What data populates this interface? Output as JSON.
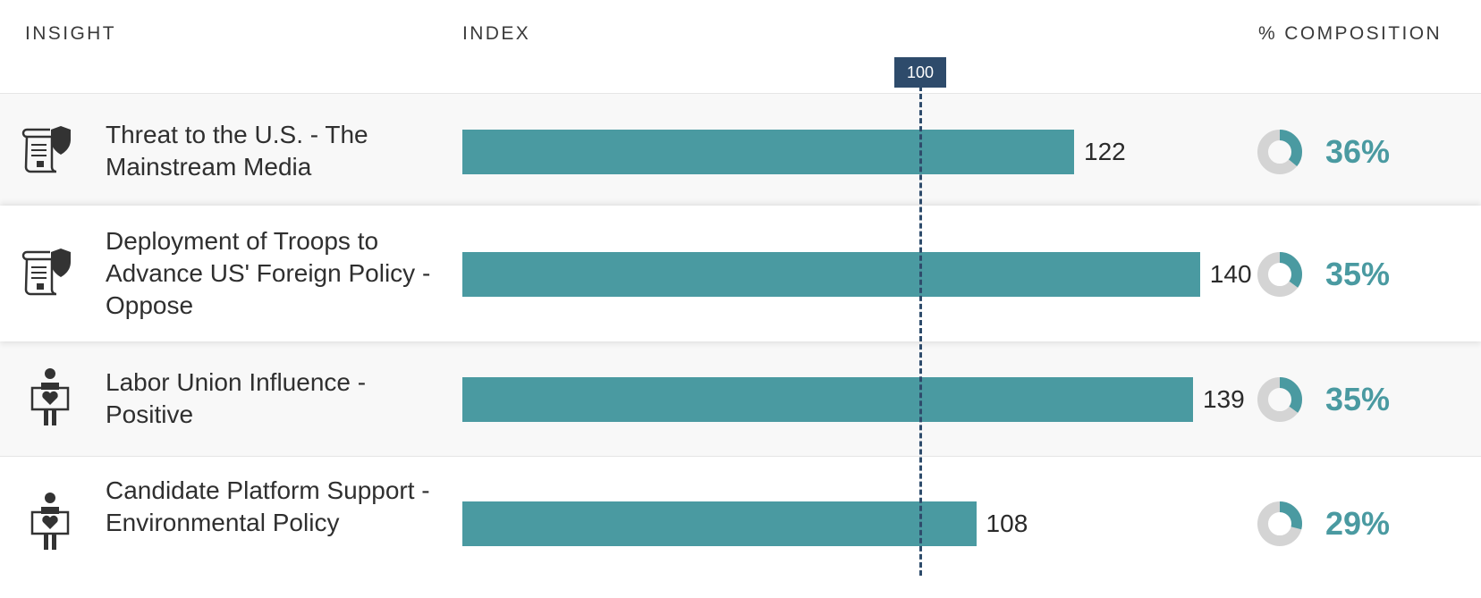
{
  "headers": {
    "insight": "INSIGHT",
    "index": "INDEX",
    "composition": "% COMPOSITION"
  },
  "reference": {
    "label": "100",
    "value": 100
  },
  "colors": {
    "bar": "#4a9aa1",
    "reference": "#2e4b6b",
    "donut_track": "#d4d4d4"
  },
  "rows": [
    {
      "label": "Threat to the U.S. - The Mainstream Media",
      "icon": "scroll-shield-icon",
      "index": "122",
      "composition": "36%"
    },
    {
      "label": "Deployment of Troops to Advance US' Foreign Policy - Oppose",
      "icon": "scroll-shield-icon",
      "index": "140",
      "composition": "35%"
    },
    {
      "label": "Labor Union Influence - Positive",
      "icon": "person-sign-heart-icon",
      "index": "139",
      "composition": "35%"
    },
    {
      "label": "Candidate Platform Support - Environmental Policy",
      "icon": "person-sign-heart-icon",
      "index": "108",
      "composition": "29%"
    }
  ],
  "chart_data": {
    "type": "bar",
    "categories": [
      "Threat to the U.S. - The Mainstream Media",
      "Deployment of Troops to Advance US' Foreign Policy - Oppose",
      "Labor Union Influence - Positive",
      "Candidate Platform Support - Environmental Policy"
    ],
    "series": [
      {
        "name": "INDEX",
        "values": [
          122,
          140,
          139,
          108
        ]
      },
      {
        "name": "% COMPOSITION",
        "values": [
          36,
          35,
          35,
          29
        ]
      }
    ],
    "reference_line": 100,
    "orientation": "horizontal"
  }
}
